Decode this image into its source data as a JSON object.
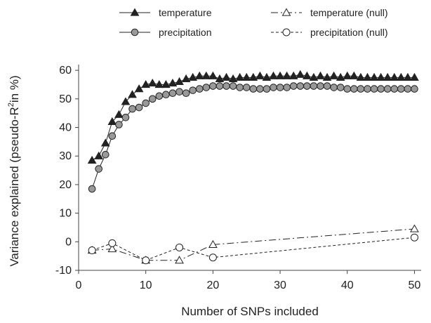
{
  "chart_data": {
    "type": "line",
    "xlabel": "Number of SNPs included",
    "ylabel_main": "Variance explained (pseudo-R",
    "ylabel_sup": "2",
    "ylabel_tail": "in %)",
    "xlim": [
      0,
      51
    ],
    "ylim": [
      -10,
      62
    ],
    "xticks": [
      0,
      10,
      20,
      30,
      40,
      50
    ],
    "yticks": [
      -10,
      0,
      10,
      20,
      30,
      40,
      50,
      60
    ],
    "grid": false,
    "legend_position": "top",
    "series": [
      {
        "name": "temperature",
        "line": "solid",
        "marker": "triangle-filled",
        "color": "#222222",
        "x": [
          2,
          3,
          4,
          5,
          6,
          7,
          8,
          9,
          10,
          11,
          12,
          13,
          14,
          15,
          16,
          17,
          18,
          19,
          20,
          21,
          22,
          23,
          24,
          25,
          26,
          27,
          28,
          29,
          30,
          31,
          32,
          33,
          34,
          35,
          36,
          37,
          38,
          39,
          40,
          41,
          42,
          43,
          44,
          45,
          46,
          47,
          48,
          49,
          50
        ],
        "y": [
          28.5,
          30,
          34.5,
          42,
          44.5,
          49,
          51.5,
          53.5,
          55,
          55.5,
          55,
          55,
          55.5,
          56,
          57,
          57.5,
          58,
          58,
          58,
          57,
          57.5,
          57,
          57.5,
          57.5,
          57.5,
          58,
          57.5,
          58,
          58,
          58,
          58,
          58.5,
          58,
          57.5,
          58,
          57.5,
          58,
          57.5,
          58,
          58,
          57.5,
          57.5,
          57.5,
          57.5,
          57.5,
          57.5,
          57.5,
          57.5,
          57.5
        ]
      },
      {
        "name": "precipitation",
        "line": "solid",
        "marker": "circle-filled",
        "color": "#999999",
        "x": [
          2,
          3,
          4,
          5,
          6,
          7,
          8,
          9,
          10,
          11,
          12,
          13,
          14,
          15,
          16,
          17,
          18,
          19,
          20,
          21,
          22,
          23,
          24,
          25,
          26,
          27,
          28,
          29,
          30,
          31,
          32,
          33,
          34,
          35,
          36,
          37,
          38,
          39,
          40,
          41,
          42,
          43,
          44,
          45,
          46,
          47,
          48,
          49,
          50
        ],
        "y": [
          18.5,
          25.5,
          30.5,
          37,
          41,
          43.5,
          46.5,
          47,
          48.5,
          50,
          51,
          51.5,
          52,
          52.5,
          52,
          53,
          53.5,
          54,
          54.5,
          54.5,
          54.5,
          54.5,
          54,
          54,
          53.5,
          53.5,
          53.5,
          54,
          54,
          54,
          54.5,
          54.5,
          54.5,
          54.5,
          54.5,
          54.5,
          54,
          54,
          53.5,
          53.5,
          53.5,
          53.5,
          53.5,
          53.5,
          53.5,
          53.5,
          53.5,
          53.5,
          53.5
        ]
      },
      {
        "name": "temperature (null)",
        "line": "dash-dot",
        "marker": "triangle-open",
        "color": "#222222",
        "x": [
          2,
          5,
          10,
          15,
          20,
          50
        ],
        "y": [
          -3,
          -2.5,
          -6.5,
          -6.5,
          -1,
          4.5
        ]
      },
      {
        "name": "precipitation (null)",
        "line": "dotted-dash",
        "marker": "circle-open",
        "color": "#222222",
        "x": [
          2,
          5,
          10,
          15,
          20,
          50
        ],
        "y": [
          -3,
          -0.5,
          -6.5,
          -2,
          -5.5,
          1.5
        ]
      }
    ]
  }
}
